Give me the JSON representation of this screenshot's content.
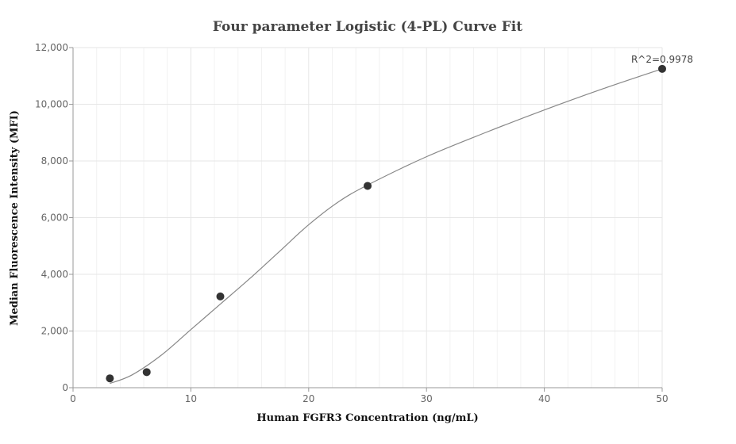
{
  "chart_data": {
    "type": "scatter",
    "title": "Four parameter Logistic (4-PL) Curve Fit",
    "xlabel": "Human FGFR3 Concentration (ng/mL)",
    "ylabel": "Median Fluorescence Intensity (MFI)",
    "xlim": [
      0,
      50
    ],
    "ylim": [
      0,
      12000
    ],
    "x_ticks": [
      0,
      10,
      20,
      30,
      40,
      50
    ],
    "y_ticks": [
      0,
      2000,
      4000,
      6000,
      8000,
      10000,
      12000
    ],
    "x_tick_labels": [
      "0",
      "10",
      "20",
      "30",
      "40",
      "50"
    ],
    "y_tick_labels": [
      "0",
      "2,000",
      "4,000",
      "6,000",
      "8,000",
      "10,000",
      "12,000"
    ],
    "grid": true,
    "points": [
      {
        "x": 3.125,
        "y": 330
      },
      {
        "x": 6.25,
        "y": 550
      },
      {
        "x": 12.5,
        "y": 3220
      },
      {
        "x": 25,
        "y": 7120
      },
      {
        "x": 50,
        "y": 11250
      }
    ],
    "fit_curve": [
      {
        "x": 3.125,
        "y": 150
      },
      {
        "x": 5,
        "y": 450
      },
      {
        "x": 7.5,
        "y": 1150
      },
      {
        "x": 10,
        "y": 2050
      },
      {
        "x": 12.5,
        "y": 2950
      },
      {
        "x": 15,
        "y": 3850
      },
      {
        "x": 17.5,
        "y": 4800
      },
      {
        "x": 20,
        "y": 5750
      },
      {
        "x": 22.5,
        "y": 6550
      },
      {
        "x": 25,
        "y": 7150
      },
      {
        "x": 30,
        "y": 8150
      },
      {
        "x": 35,
        "y": 9000
      },
      {
        "x": 40,
        "y": 9800
      },
      {
        "x": 45,
        "y": 10550
      },
      {
        "x": 50,
        "y": 11250
      }
    ],
    "annotation": "R^2=0.9978",
    "colors": {
      "point": "#333333",
      "curve": "#888888",
      "grid": "#e6e6e6",
      "minor_grid": "#f2f2f2",
      "axis": "#999999"
    }
  }
}
